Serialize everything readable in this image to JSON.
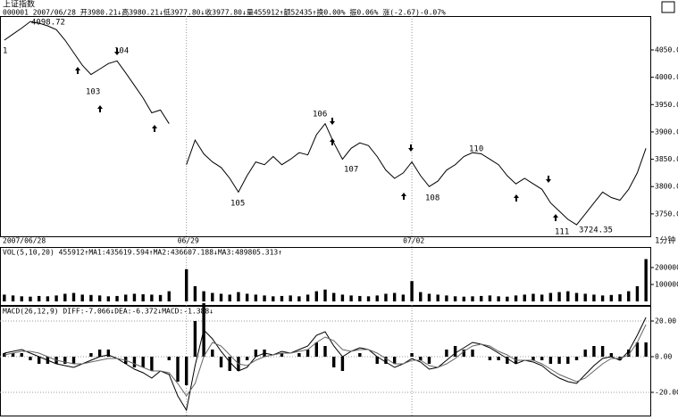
{
  "chart_data": [
    {
      "type": "line",
      "title": "上证指数",
      "subtitle": "000001 2007/06/28 开3980.21↓高3980.21↓低3977.80↓收3977.80↓量455912↑额52435↑换0.00% 振0.06% 涨(-2.67)-0.07%",
      "period": "1分钟",
      "categories": [
        "2007/06/28",
        null,
        null,
        null,
        null,
        null,
        null,
        null,
        null,
        null,
        null,
        null,
        null,
        null,
        null,
        null,
        null,
        null,
        null,
        null,
        null,
        "06/29",
        null,
        null,
        null,
        null,
        null,
        null,
        null,
        null,
        null,
        null,
        null,
        null,
        null,
        null,
        null,
        null,
        null,
        null,
        null,
        null,
        null,
        null,
        null,
        null,
        null,
        "07/02",
        null,
        null,
        null,
        null,
        null,
        null,
        null,
        null,
        null,
        null,
        null,
        null,
        null,
        null,
        null,
        null,
        null,
        null,
        null,
        null,
        null,
        null,
        null,
        null,
        null,
        null,
        null
      ],
      "values": [
        4068,
        4079,
        4090,
        4102,
        4099,
        4094,
        4087,
        4068,
        4045,
        4022,
        4005,
        4015,
        4025,
        4030,
        4008,
        3985,
        3962,
        3935,
        3940,
        3915,
        null,
        3840,
        3885,
        3860,
        3845,
        3835,
        3815,
        3790,
        3820,
        3845,
        3840,
        3855,
        3840,
        3850,
        3862,
        3858,
        3895,
        3915,
        3880,
        3850,
        3870,
        3880,
        3875,
        3855,
        3830,
        3815,
        3825,
        3845,
        3820,
        3800,
        3810,
        3830,
        3840,
        3855,
        3862,
        3860,
        3850,
        3840,
        3820,
        3805,
        3815,
        3805,
        3795,
        3770,
        3755,
        3740,
        3730,
        3750,
        3770,
        3790,
        3780,
        3775,
        3795,
        3825,
        3870
      ],
      "color": "#000000",
      "ylim": [
        3709,
        4112
      ],
      "yticks": [
        {
          "value": 3750,
          "label": "3750.00"
        },
        {
          "value": 3800,
          "label": "3800.00"
        },
        {
          "value": 3850,
          "label": "3850.00"
        },
        {
          "value": 3900,
          "label": "3900.00"
        },
        {
          "value": 3950,
          "label": "3950.00"
        },
        {
          "value": 4000,
          "label": "4000.00"
        },
        {
          "value": 4050,
          "label": "4050.00"
        }
      ],
      "annotations": [
        "1",
        "4098.72",
        "104",
        "103",
        "105",
        "106",
        "107",
        "108",
        "110",
        "111",
        "3724.35"
      ]
    },
    {
      "type": "bar",
      "title": "VOL(5,10,20) 455912↑MA1:435619.594↑MA2:436607.188↓MA3:489805.313↑",
      "values": [
        40000,
        35000,
        30000,
        28000,
        32000,
        30000,
        35000,
        45000,
        50000,
        40000,
        38000,
        35000,
        30000,
        32000,
        40000,
        45000,
        42000,
        40000,
        38000,
        60000,
        null,
        190000,
        90000,
        60000,
        50000,
        45000,
        40000,
        55000,
        45000,
        40000,
        35000,
        30000,
        32000,
        35000,
        30000,
        40000,
        60000,
        70000,
        50000,
        40000,
        35000,
        32000,
        30000,
        35000,
        45000,
        50000,
        40000,
        120000,
        55000,
        45000,
        40000,
        35000,
        30000,
        28000,
        30000,
        32000,
        35000,
        30000,
        28000,
        35000,
        40000,
        45000,
        40000,
        50000,
        55000,
        60000,
        50000,
        45000,
        40000,
        35000,
        38000,
        42000,
        60000,
        90000,
        250000
      ],
      "color": "#000000",
      "ylim": [
        0,
        316000
      ],
      "yticks": [
        100000,
        200000
      ]
    },
    {
      "type": "macd",
      "title": "MACD(26,12,9) DIFF:-7.066↓DEA:-6.372↓MACD:-1.388↓",
      "values": [
        2,
        2,
        2,
        -2,
        -4,
        -4,
        -4,
        -4,
        -4,
        0,
        2,
        4,
        4,
        0,
        -4,
        -6,
        -6,
        -8,
        0,
        -2,
        -14,
        -16,
        20,
        30,
        4,
        -6,
        -8,
        -8,
        -2,
        4,
        4,
        0,
        2,
        0,
        2,
        4,
        8,
        6,
        -6,
        -8,
        0,
        2,
        0,
        -4,
        -4,
        -4,
        0,
        2,
        -2,
        -4,
        0,
        4,
        6,
        4,
        4,
        0,
        -2,
        -2,
        -4,
        -4,
        0,
        -2,
        -2,
        -4,
        -4,
        -4,
        -2,
        4,
        6,
        6,
        2,
        -2,
        4,
        8,
        8
      ],
      "color": "#000000",
      "lines": [
        {
          "color": "#000000",
          "values": [
            2,
            3,
            4,
            2,
            0,
            -2,
            -4,
            -5,
            -6,
            -4,
            -2,
            0,
            1,
            -1,
            -4,
            -7,
            -9,
            -12,
            -8,
            -10,
            -22,
            -30,
            -5,
            15,
            10,
            3,
            -3,
            -8,
            -6,
            0,
            2,
            1,
            3,
            2,
            4,
            6,
            12,
            14,
            6,
            0,
            3,
            5,
            4,
            0,
            -3,
            -6,
            -4,
            -1,
            -3,
            -7,
            -6,
            -2,
            2,
            5,
            8,
            7,
            5,
            2,
            -1,
            -4,
            -2,
            -3,
            -5,
            -9,
            -12,
            -14,
            -15,
            -10,
            -5,
            -1,
            0,
            -2,
            3,
            12,
            22
          ]
        },
        {
          "color": "#666666",
          "values": [
            1,
            2,
            3,
            3,
            2,
            0,
            -2,
            -3,
            -4,
            -4,
            -3,
            -2,
            -1,
            -1,
            -2,
            -4,
            -6,
            -8,
            -8,
            -9,
            -15,
            -22,
            -15,
            0,
            8,
            6,
            1,
            -4,
            -5,
            -2,
            0,
            1,
            2,
            2,
            3,
            4,
            8,
            11,
            9,
            4,
            3,
            4,
            4,
            2,
            -1,
            -4,
            -4,
            -2,
            -2,
            -5,
            -6,
            -4,
            -1,
            3,
            6,
            7,
            6,
            3,
            1,
            -2,
            -2,
            -2,
            -4,
            -7,
            -10,
            -12,
            -14,
            -12,
            -8,
            -4,
            -1,
            -1,
            1,
            8,
            18
          ]
        }
      ],
      "ylim": [
        -32.5,
        28
      ],
      "yticks": [
        {
          "value": -20,
          "label": "-20.00"
        },
        {
          "value": 0,
          "label": "0.00"
        },
        {
          "value": 20,
          "label": "20.00"
        }
      ]
    }
  ]
}
